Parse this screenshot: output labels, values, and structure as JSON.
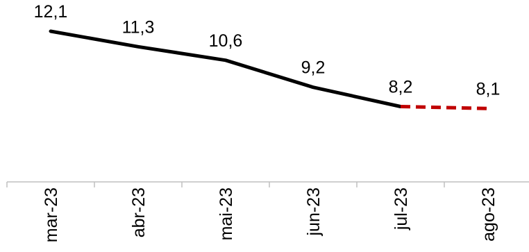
{
  "chart_data": {
    "type": "line",
    "categories": [
      "mar-23",
      "abr-23",
      "mai-23",
      "jun-23",
      "jul-23",
      "ago-23"
    ],
    "series": [
      {
        "values": [
          12.1,
          11.3,
          10.6,
          9.2,
          8.2,
          8.1
        ],
        "labels": [
          "12,1",
          "11,3",
          "10,6",
          "9,2",
          "8,2",
          "8,1"
        ],
        "color": "#000000",
        "projection_color": "#c00000",
        "projection_from_index": 4
      }
    ],
    "title": "",
    "xlabel": "",
    "ylabel": "",
    "ylim": [
      4.3,
      13.0
    ],
    "grid": false,
    "legend": "none",
    "axis_color": "#bfbfbf"
  }
}
